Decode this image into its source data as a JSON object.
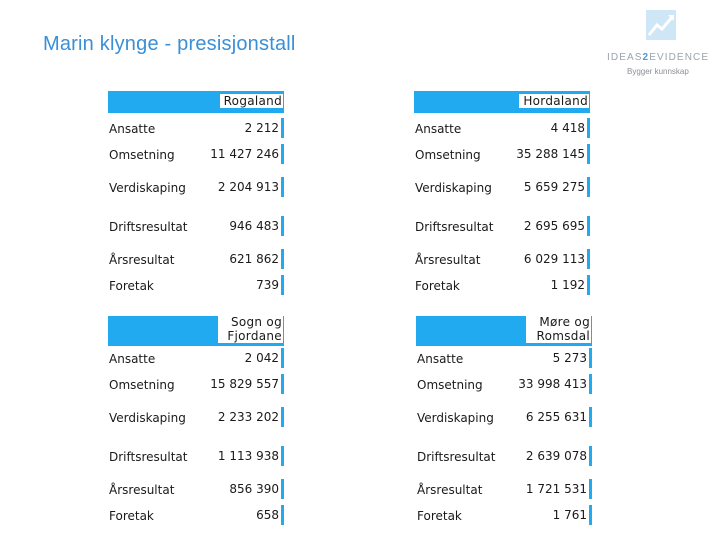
{
  "title": "Marin klynge - presisjonstall",
  "logo": {
    "brand_a": "IDEAS",
    "brand_b": "2",
    "brand_c": "EVIDENCE",
    "tagline": "Bygger kunnskap"
  },
  "row_labels": [
    "Ansatte",
    "Omsetning",
    "Verdiskaping",
    "Driftsresultat",
    "Årsresultat",
    "Foretak"
  ],
  "regions": [
    {
      "name": "Rogaland",
      "values": [
        "2 212",
        "11 427 246",
        "2 204 913",
        "946 483",
        "621 862",
        "739"
      ]
    },
    {
      "name": "Hordaland",
      "values": [
        "4 418",
        "35 288 145",
        "5 659 275",
        "2 695 695",
        "6 029 113",
        "1 192"
      ]
    },
    {
      "name": "Sogn og Fjordane",
      "values": [
        "2 042",
        "15 829 557",
        "2 233 202",
        "1 113 938",
        "856 390",
        "658"
      ]
    },
    {
      "name": "Møre og Romsdal",
      "values": [
        "5 273",
        "33 998 413",
        "6 255 631",
        "2 639 078",
        "1 721 531",
        "1 761"
      ]
    }
  ],
  "colors": {
    "title": "#3a8fd6",
    "accent": "#22aaf0"
  }
}
